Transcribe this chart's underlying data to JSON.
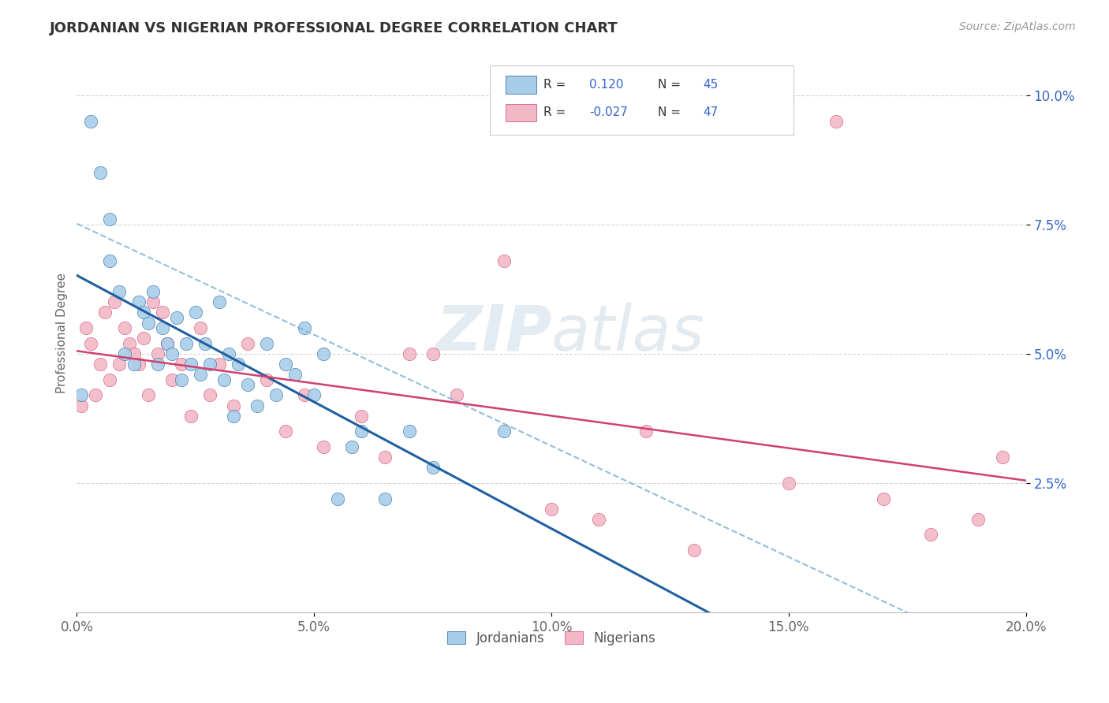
{
  "title": "JORDANIAN VS NIGERIAN PROFESSIONAL DEGREE CORRELATION CHART",
  "source": "Source: ZipAtlas.com",
  "ylabel": "Professional Degree",
  "xlim": [
    0.0,
    0.2
  ],
  "ylim": [
    0.0,
    0.108
  ],
  "xticks": [
    0.0,
    0.05,
    0.1,
    0.15,
    0.2
  ],
  "xtick_labels": [
    "0.0%",
    "5.0%",
    "10.0%",
    "15.0%",
    "20.0%"
  ],
  "yticks": [
    0.025,
    0.05,
    0.075,
    0.1
  ],
  "ytick_labels": [
    "2.5%",
    "5.0%",
    "7.5%",
    "10.0%"
  ],
  "blue_color": "#A8CDE8",
  "pink_color": "#F2B8C6",
  "blue_line_color": "#2060A0",
  "pink_line_color": "#D04070",
  "blue_dash_color": "#7AAFD0",
  "watermark_color": "#C8D8E8",
  "jordanians_x": [
    0.001,
    0.003,
    0.005,
    0.007,
    0.007,
    0.009,
    0.01,
    0.012,
    0.013,
    0.014,
    0.015,
    0.016,
    0.017,
    0.018,
    0.019,
    0.02,
    0.021,
    0.022,
    0.023,
    0.024,
    0.025,
    0.026,
    0.027,
    0.028,
    0.03,
    0.031,
    0.032,
    0.033,
    0.034,
    0.036,
    0.038,
    0.04,
    0.042,
    0.044,
    0.046,
    0.048,
    0.05,
    0.052,
    0.055,
    0.058,
    0.06,
    0.065,
    0.07,
    0.075,
    0.09
  ],
  "jordanians_y": [
    0.042,
    0.095,
    0.085,
    0.076,
    0.068,
    0.062,
    0.05,
    0.048,
    0.06,
    0.058,
    0.056,
    0.062,
    0.048,
    0.055,
    0.052,
    0.05,
    0.057,
    0.045,
    0.052,
    0.048,
    0.058,
    0.046,
    0.052,
    0.048,
    0.06,
    0.045,
    0.05,
    0.038,
    0.048,
    0.044,
    0.04,
    0.052,
    0.042,
    0.048,
    0.046,
    0.055,
    0.042,
    0.05,
    0.022,
    0.032,
    0.035,
    0.022,
    0.035,
    0.028,
    0.035
  ],
  "nigerians_x": [
    0.001,
    0.002,
    0.003,
    0.004,
    0.005,
    0.006,
    0.007,
    0.008,
    0.009,
    0.01,
    0.011,
    0.012,
    0.013,
    0.014,
    0.015,
    0.016,
    0.017,
    0.018,
    0.019,
    0.02,
    0.022,
    0.024,
    0.026,
    0.028,
    0.03,
    0.033,
    0.036,
    0.04,
    0.044,
    0.048,
    0.052,
    0.06,
    0.065,
    0.07,
    0.075,
    0.08,
    0.09,
    0.1,
    0.11,
    0.12,
    0.13,
    0.15,
    0.16,
    0.17,
    0.18,
    0.19,
    0.195
  ],
  "nigerians_y": [
    0.04,
    0.055,
    0.052,
    0.042,
    0.048,
    0.058,
    0.045,
    0.06,
    0.048,
    0.055,
    0.052,
    0.05,
    0.048,
    0.053,
    0.042,
    0.06,
    0.05,
    0.058,
    0.052,
    0.045,
    0.048,
    0.038,
    0.055,
    0.042,
    0.048,
    0.04,
    0.052,
    0.045,
    0.035,
    0.042,
    0.032,
    0.038,
    0.03,
    0.05,
    0.05,
    0.042,
    0.068,
    0.02,
    0.018,
    0.035,
    0.012,
    0.025,
    0.095,
    0.022,
    0.015,
    0.018,
    0.03
  ]
}
